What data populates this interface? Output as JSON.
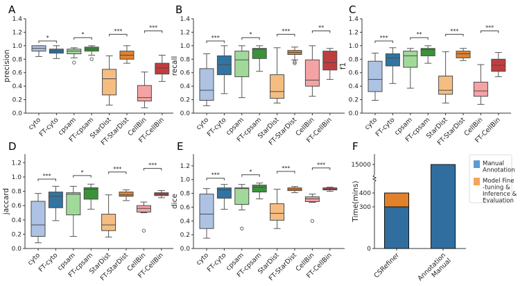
{
  "palette": {
    "cyto": "#aec3e3",
    "FT-cyto": "#3274a1",
    "cpsam": "#a1d99b",
    "FT-cpsam": "#3a923a",
    "StarDist": "#f5bd82",
    "FT-StarDist": "#e1812c",
    "CellBin": "#f4a3a5",
    "FT-CellBin": "#c03d3e",
    "edge": "#4a4a4a"
  },
  "chart_data": [
    {
      "panel": "A",
      "type": "box",
      "ylabel": "precision",
      "ylim": [
        0,
        1.4
      ],
      "yticks": [
        "0.0",
        "0.2",
        "0.4",
        "0.6",
        "0.8",
        "1.0",
        "1.2",
        "1.4"
      ],
      "categories": [
        "cyto",
        "FT-cyto",
        "cpsam",
        "FT-cpsam",
        "StarDist",
        "FT-StarDist",
        "CellBin",
        "FT-CellBin"
      ],
      "boxes": [
        {
          "whislo": 0.84,
          "q1": 0.92,
          "med": 0.96,
          "q3": 1.0,
          "whishi": 1.0,
          "fliers": []
        },
        {
          "whislo": 0.81,
          "q1": 0.89,
          "med": 0.92,
          "q3": 0.95,
          "whishi": 1.0,
          "fliers": []
        },
        {
          "whislo": 0.82,
          "q1": 0.88,
          "med": 0.92,
          "q3": 0.95,
          "whishi": 0.97,
          "fliers": [
            0.75
          ]
        },
        {
          "whislo": 0.86,
          "q1": 0.92,
          "med": 0.95,
          "q3": 0.98,
          "whishi": 1.0,
          "fliers": [
            0.8
          ]
        },
        {
          "whislo": 0.12,
          "q1": 0.27,
          "med": 0.51,
          "q3": 0.65,
          "whishi": 0.85,
          "fliers": []
        },
        {
          "whislo": 0.74,
          "q1": 0.8,
          "med": 0.86,
          "q3": 0.92,
          "whishi": 1.0,
          "fliers": []
        },
        {
          "whislo": 0.08,
          "q1": 0.18,
          "med": 0.23,
          "q3": 0.41,
          "whishi": 0.61,
          "fliers": []
        },
        {
          "whislo": 0.47,
          "q1": 0.58,
          "med": 0.67,
          "q3": 0.74,
          "whishi": 0.86,
          "fliers": []
        }
      ],
      "significance": [
        {
          "pair": [
            "cyto",
            "FT-cyto"
          ],
          "label": "*",
          "y": 1.07
        },
        {
          "pair": [
            "cpsam",
            "FT-cpsam"
          ],
          "label": "*",
          "y": 1.12
        },
        {
          "pair": [
            "StarDist",
            "FT-StarDist"
          ],
          "label": "***",
          "y": 1.17
        },
        {
          "pair": [
            "CellBin",
            "FT-CellBin"
          ],
          "label": "***",
          "y": 1.22
        }
      ]
    },
    {
      "panel": "B",
      "type": "box",
      "ylabel": "recall",
      "ylim": [
        0,
        1.4
      ],
      "yticks": [
        "0.0",
        "0.2",
        "0.4",
        "0.6",
        "0.8",
        "1.0",
        "1.2",
        "1.4"
      ],
      "categories": [
        "cyto",
        "FT-cyto",
        "cpsam",
        "FT-cpsam",
        "StarDist",
        "FT-StarDist",
        "CellBin",
        "FT-CellBin"
      ],
      "boxes": [
        {
          "whislo": 0.11,
          "q1": 0.19,
          "med": 0.34,
          "q3": 0.66,
          "whishi": 0.88,
          "fliers": []
        },
        {
          "whislo": 0.29,
          "q1": 0.57,
          "med": 0.72,
          "q3": 0.85,
          "whishi": 1.0,
          "fliers": []
        },
        {
          "whislo": 0.23,
          "q1": 0.54,
          "med": 0.79,
          "q3": 0.92,
          "whishi": 1.0,
          "fliers": []
        },
        {
          "whislo": 0.62,
          "q1": 0.81,
          "med": 0.95,
          "q3": 0.96,
          "whishi": 1.0,
          "fliers": []
        },
        {
          "whislo": 0.15,
          "q1": 0.22,
          "med": 0.32,
          "q3": 0.57,
          "whishi": 0.97,
          "fliers": []
        },
        {
          "whislo": 0.79,
          "q1": 0.87,
          "med": 0.9,
          "q3": 0.93,
          "whishi": 0.98,
          "fliers": [
            0.76,
            0.74
          ]
        },
        {
          "whislo": 0.25,
          "q1": 0.4,
          "med": 0.49,
          "q3": 0.79,
          "whishi": 1.0,
          "fliers": []
        },
        {
          "whislo": 0.5,
          "q1": 0.64,
          "med": 0.75,
          "q3": 0.92,
          "whishi": 0.96,
          "fliers": []
        }
      ],
      "significance": [
        {
          "pair": [
            "cyto",
            "FT-cyto"
          ],
          "label": "***",
          "y": 1.07
        },
        {
          "pair": [
            "cpsam",
            "FT-cpsam"
          ],
          "label": "*",
          "y": 1.12
        },
        {
          "pair": [
            "StarDist",
            "FT-StarDist"
          ],
          "label": "***",
          "y": 1.17
        },
        {
          "pair": [
            "CellBin",
            "FT-CellBin"
          ],
          "label": "**",
          "y": 1.22
        }
      ]
    },
    {
      "panel": "C",
      "type": "box",
      "ylabel": "f1",
      "ylim": [
        0,
        1.4
      ],
      "yticks": [
        "0.0",
        "0.2",
        "0.4",
        "0.6",
        "0.8",
        "1.0",
        "1.2",
        "1.4"
      ],
      "categories": [
        "cyto",
        "FT-cyto",
        "cpsam",
        "FT-cpsam",
        "StarDist",
        "FT-StarDist",
        "CellBin",
        "FT-CellBin"
      ],
      "boxes": [
        {
          "whislo": 0.19,
          "q1": 0.32,
          "med": 0.5,
          "q3": 0.77,
          "whishi": 0.89,
          "fliers": []
        },
        {
          "whislo": 0.44,
          "q1": 0.7,
          "med": 0.82,
          "q3": 0.88,
          "whishi": 0.97,
          "fliers": []
        },
        {
          "whislo": 0.37,
          "q1": 0.68,
          "med": 0.85,
          "q3": 0.92,
          "whishi": 0.96,
          "fliers": []
        },
        {
          "whislo": 0.74,
          "q1": 0.85,
          "med": 0.94,
          "q3": 0.96,
          "whishi": 1.0,
          "fliers": []
        },
        {
          "whislo": 0.15,
          "q1": 0.28,
          "med": 0.34,
          "q3": 0.55,
          "whishi": 0.91,
          "fliers": []
        },
        {
          "whislo": 0.78,
          "q1": 0.82,
          "med": 0.88,
          "q3": 0.92,
          "whishi": 0.96,
          "fliers": []
        },
        {
          "whislo": 0.13,
          "q1": 0.25,
          "med": 0.33,
          "q3": 0.46,
          "whishi": 0.72,
          "fliers": []
        },
        {
          "whislo": 0.54,
          "q1": 0.62,
          "med": 0.71,
          "q3": 0.8,
          "whishi": 0.9,
          "fliers": []
        }
      ],
      "significance": [
        {
          "pair": [
            "cyto",
            "FT-cyto"
          ],
          "label": "***",
          "y": 1.07
        },
        {
          "pair": [
            "cpsam",
            "FT-cpsam"
          ],
          "label": "**",
          "y": 1.12
        },
        {
          "pair": [
            "StarDist",
            "FT-StarDist"
          ],
          "label": "***",
          "y": 1.17
        },
        {
          "pair": [
            "CellBin",
            "FT-CellBin"
          ],
          "label": "***",
          "y": 1.22
        }
      ]
    },
    {
      "panel": "D",
      "type": "box",
      "ylabel": "jaccard",
      "ylim": [
        0,
        1.32
      ],
      "yticks": [
        "0.0",
        "0.2",
        "0.4",
        "0.6",
        "0.8",
        "1.0",
        "1.2"
      ],
      "categories": [
        "cyto",
        "FT-cyto",
        "cpsam",
        "FT-cpsam",
        "StarDist",
        "FT-StarDist",
        "CellBin",
        "FT-CellBin"
      ],
      "boxes": [
        {
          "whislo": 0.08,
          "q1": 0.17,
          "med": 0.33,
          "q3": 0.66,
          "whishi": 0.77,
          "fliers": []
        },
        {
          "whislo": 0.39,
          "q1": 0.57,
          "med": 0.73,
          "q3": 0.79,
          "whishi": 0.87,
          "fliers": []
        },
        {
          "whislo": 0.17,
          "q1": 0.47,
          "med": 0.76,
          "q3": 0.78,
          "whishi": 0.87,
          "fliers": []
        },
        {
          "whislo": 0.55,
          "q1": 0.69,
          "med": 0.83,
          "q3": 0.85,
          "whishi": 0.9,
          "fliers": []
        },
        {
          "whislo": 0.16,
          "q1": 0.25,
          "med": 0.33,
          "q3": 0.48,
          "whishi": 0.75,
          "fliers": []
        },
        {
          "whislo": 0.67,
          "q1": 0.73,
          "med": 0.75,
          "q3": 0.79,
          "whishi": 0.82,
          "fliers": []
        },
        {
          "whislo": 0.5,
          "q1": 0.51,
          "med": 0.56,
          "q3": 0.6,
          "whishi": 0.65,
          "fliers": [
            0.25
          ]
        },
        {
          "whislo": 0.71,
          "q1": 0.74,
          "med": 0.76,
          "q3": 0.78,
          "whishi": 0.81,
          "fliers": []
        }
      ],
      "significance": [
        {
          "pair": [
            "cyto",
            "FT-cyto"
          ],
          "label": "***",
          "y": 0.97
        },
        {
          "pair": [
            "cpsam",
            "FT-cpsam"
          ],
          "label": "*",
          "y": 1.02
        },
        {
          "pair": [
            "StarDist",
            "FT-StarDist"
          ],
          "label": "***",
          "y": 1.07
        },
        {
          "pair": [
            "CellBin",
            "FT-CellBin"
          ],
          "label": "***",
          "y": 1.12
        }
      ]
    },
    {
      "panel": "E",
      "type": "box",
      "ylabel": "dice",
      "ylim": [
        0,
        1.37
      ],
      "yticks": [
        "0.0",
        "0.2",
        "0.4",
        "0.6",
        "0.8",
        "1.0",
        "1.2"
      ],
      "categories": [
        "cyto",
        "FT-cyto",
        "cpsam",
        "FT-cpsam",
        "StarDist",
        "FT-StarDist",
        "CellBin",
        "FT-CellBin"
      ],
      "boxes": [
        {
          "whislo": 0.15,
          "q1": 0.29,
          "med": 0.5,
          "q3": 0.79,
          "whishi": 0.87,
          "fliers": []
        },
        {
          "whislo": 0.57,
          "q1": 0.73,
          "med": 0.85,
          "q3": 0.88,
          "whishi": 0.93,
          "fliers": []
        },
        {
          "whislo": 0.56,
          "q1": 0.64,
          "med": 0.87,
          "q3": 0.88,
          "whishi": 0.93,
          "fliers": [
            0.29
          ]
        },
        {
          "whislo": 0.72,
          "q1": 0.82,
          "med": 0.89,
          "q3": 0.92,
          "whishi": 0.95,
          "fliers": []
        },
        {
          "whislo": 0.29,
          "q1": 0.41,
          "med": 0.51,
          "q3": 0.65,
          "whishi": 0.86,
          "fliers": []
        },
        {
          "whislo": 0.81,
          "q1": 0.84,
          "med": 0.86,
          "q3": 0.88,
          "whishi": 0.9,
          "fliers": []
        },
        {
          "whislo": 0.67,
          "q1": 0.68,
          "med": 0.72,
          "q3": 0.75,
          "whishi": 0.79,
          "fliers": [
            0.4
          ]
        },
        {
          "whislo": 0.83,
          "q1": 0.85,
          "med": 0.86,
          "q3": 0.88,
          "whishi": 0.89,
          "fliers": []
        }
      ],
      "significance": [
        {
          "pair": [
            "cyto",
            "FT-cyto"
          ],
          "label": "***",
          "y": 1.02
        },
        {
          "pair": [
            "cpsam",
            "FT-cpsam"
          ],
          "label": "*",
          "y": 1.07
        },
        {
          "pair": [
            "StarDist",
            "FT-StarDist"
          ],
          "label": "***",
          "y": 1.12
        },
        {
          "pair": [
            "CellBin",
            "FT-CellBin"
          ],
          "label": "***",
          "y": 1.17
        }
      ]
    },
    {
      "panel": "F",
      "type": "bar",
      "stacked": true,
      "broken_axis": true,
      "ylabel": "Time(mins)",
      "yticks": [
        "0",
        "300",
        "400",
        "15000"
      ],
      "categories": [
        "CSRefiner",
        "Manual Annotation"
      ],
      "category_lines": [
        [
          "CSRefiner"
        ],
        [
          "Manual",
          "Annotation"
        ]
      ],
      "series": [
        {
          "name": "Manual Annotation",
          "legend_lines": [
            "Manual",
            "Annotation"
          ],
          "color": "#2f6e9f",
          "legend_color": "#5b9bd0",
          "values": [
            300,
            15000
          ]
        },
        {
          "name": "Model Fine-tuning & Inference & Evaluation",
          "legend_lines": [
            "Model Fine",
            "-tuning &",
            "Inference &",
            "Evaluation"
          ],
          "color": "#e1812c",
          "legend_color": "#f5a55a",
          "values": [
            100,
            0
          ]
        }
      ],
      "legend_position": "right"
    }
  ]
}
